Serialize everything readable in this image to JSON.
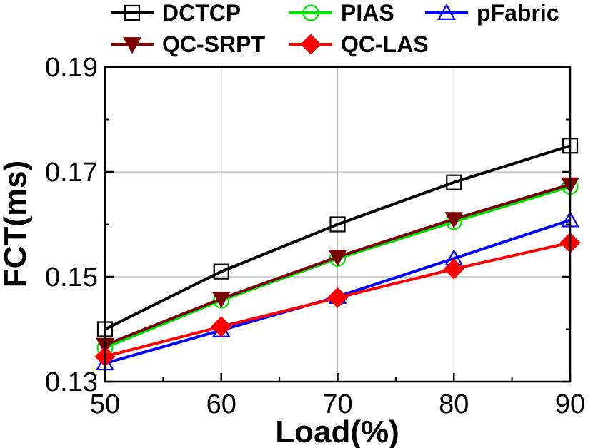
{
  "chart_data": {
    "type": "line",
    "xlabel": "Load(%)",
    "ylabel": "FCT(ms)",
    "xlim": [
      50,
      90
    ],
    "ylim": [
      0.13,
      0.19
    ],
    "x_ticks": [
      "50",
      "60",
      "70",
      "80",
      "90"
    ],
    "y_ticks": [
      "0.13",
      "0.15",
      "0.17",
      "0.19"
    ],
    "x_tick_values": [
      50,
      60,
      70,
      80,
      90
    ],
    "y_tick_values": [
      0.13,
      0.15,
      0.17,
      0.19
    ],
    "grid": true,
    "legend_position": "top",
    "x": [
      50,
      60,
      70,
      80,
      90
    ],
    "series": [
      {
        "name": "DCTCP",
        "color": "#000000",
        "marker": "square-open",
        "values": [
          0.14,
          0.151,
          0.16,
          0.168,
          0.175
        ]
      },
      {
        "name": "PIAS",
        "color": "#00e000",
        "marker": "circle-open",
        "values": [
          0.1365,
          0.1455,
          0.1535,
          0.1605,
          0.1672
        ]
      },
      {
        "name": "pFabric",
        "color": "#0000ff",
        "marker": "triangle-up-open",
        "values": [
          0.1335,
          0.1398,
          0.1462,
          0.1535,
          0.1608
        ]
      },
      {
        "name": "QC-SRPT",
        "color": "#7b0000",
        "marker": "triangle-down-filled",
        "values": [
          0.137,
          0.1458,
          0.1538,
          0.161,
          0.1676
        ]
      },
      {
        "name": "QC-LAS",
        "color": "#ff0000",
        "marker": "diamond-filled",
        "values": [
          0.1348,
          0.1405,
          0.146,
          0.1515,
          0.1565
        ]
      }
    ]
  }
}
